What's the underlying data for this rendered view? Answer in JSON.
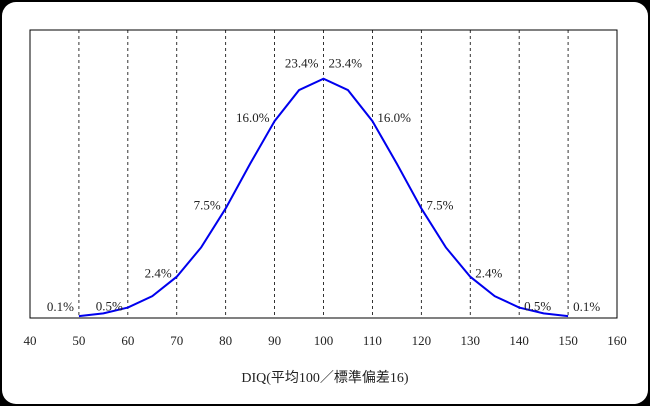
{
  "chart_data": {
    "type": "line",
    "x_label": "DIQ(平均100／標準偏差16)",
    "x": [
      50,
      55,
      60,
      65,
      70,
      75,
      80,
      85,
      90,
      95,
      100,
      105,
      110,
      115,
      120,
      125,
      130,
      135,
      140,
      145,
      150
    ],
    "values": [
      0.019,
      0.048,
      0.109,
      0.228,
      0.43,
      0.736,
      1.141,
      1.607,
      2.051,
      2.374,
      2.493,
      2.374,
      2.051,
      1.607,
      1.141,
      0.736,
      0.43,
      0.228,
      0.109,
      0.048,
      0.019
    ],
    "color": "#0000ee",
    "xlim": [
      40,
      160
    ],
    "xticks": [
      40,
      50,
      60,
      70,
      80,
      90,
      100,
      110,
      120,
      130,
      140,
      150,
      160
    ],
    "ylim": [
      0,
      3.0
    ],
    "grid": true,
    "band_values": [
      0.1,
      0.5,
      2.4,
      7.5,
      16.0,
      23.4,
      23.4,
      16.0,
      7.5,
      2.4,
      0.5,
      0.1
    ],
    "band_labels": [
      "0.1%",
      "0.5%",
      "2.4%",
      "7.5%",
      "16.0%",
      "23.4%",
      "23.4%",
      "16.0%",
      "7.5%",
      "2.4%",
      "0.5%",
      "0.1%"
    ]
  }
}
